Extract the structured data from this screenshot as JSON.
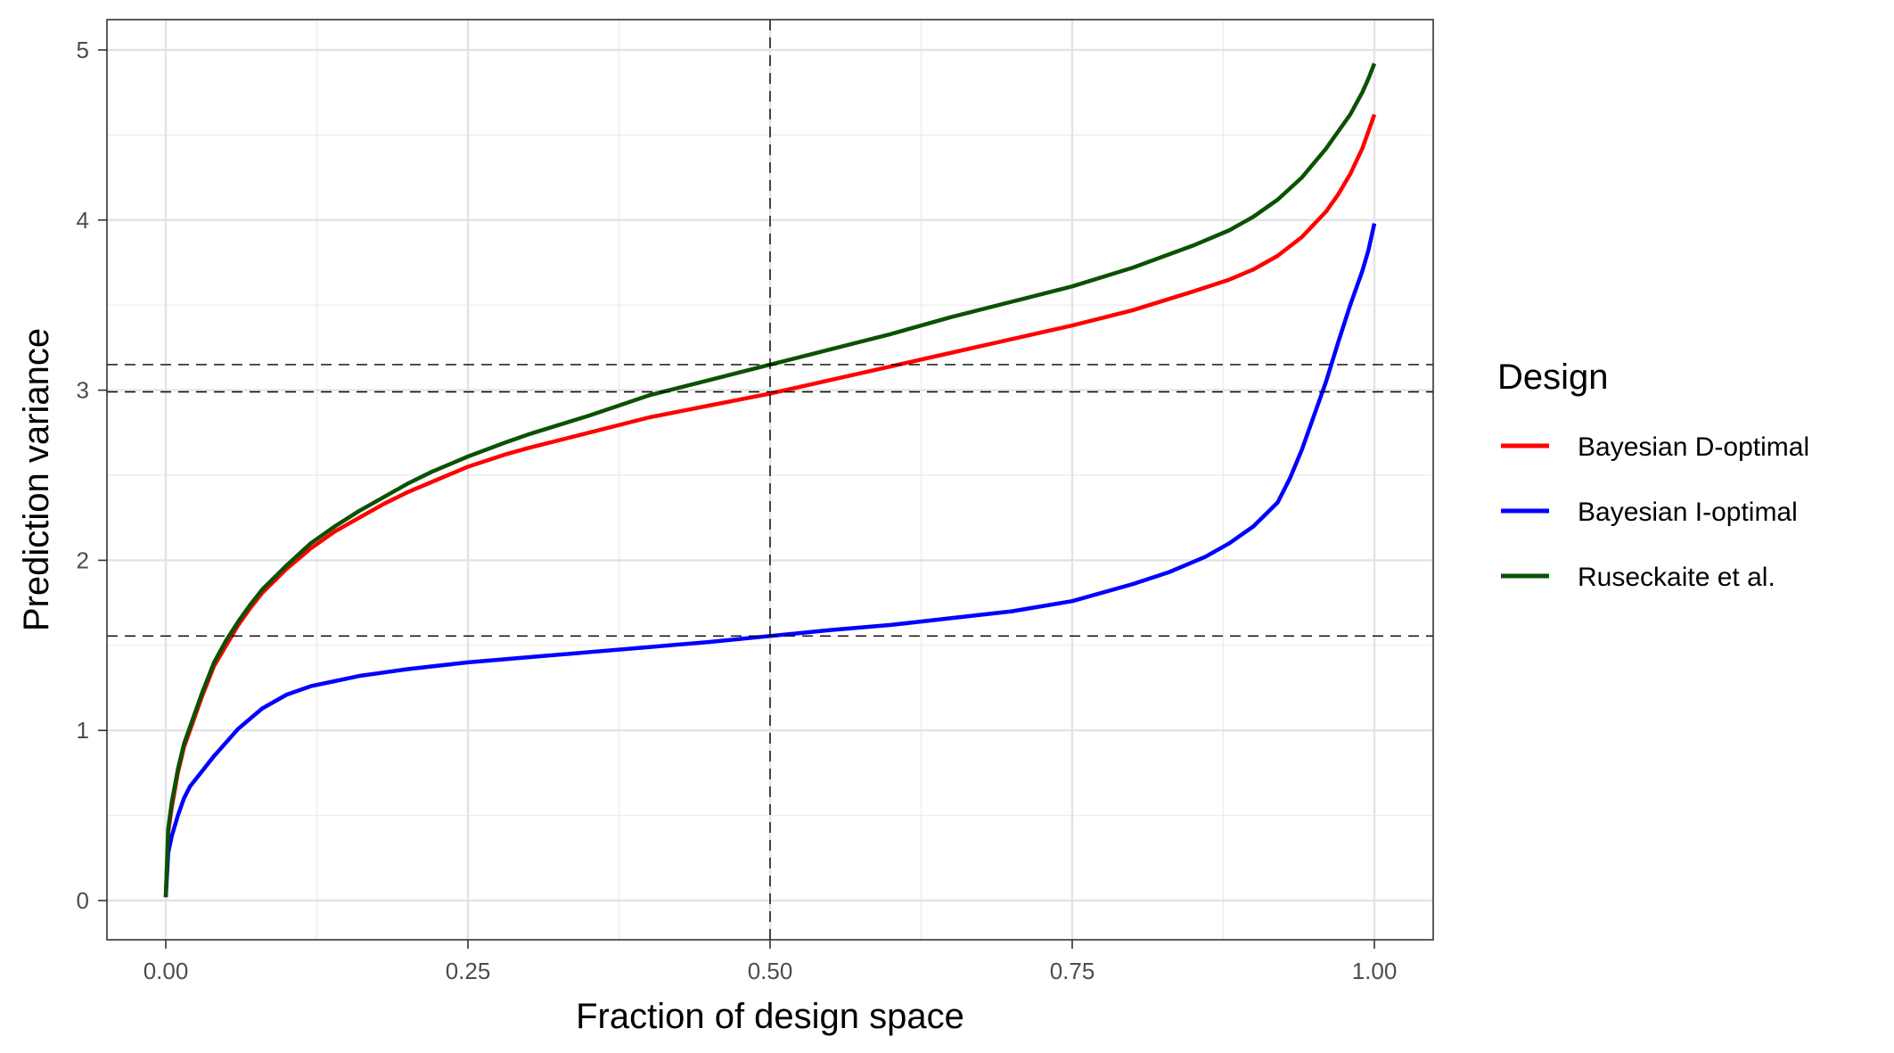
{
  "chart_data": {
    "type": "line",
    "xlabel": "Fraction of design space",
    "ylabel": "Prediction variance",
    "xlim": [
      0,
      1
    ],
    "ylim": [
      0,
      5
    ],
    "xticks": [
      0,
      0.25,
      0.5,
      0.75,
      1
    ],
    "xtick_labels": [
      "0.00",
      "0.25",
      "0.50",
      "0.75",
      "1.00"
    ],
    "yticks": [
      0,
      1,
      2,
      3,
      4,
      5
    ],
    "ytick_labels": [
      "0",
      "1",
      "2",
      "3",
      "4",
      "5"
    ],
    "grid": true,
    "legend": {
      "title": "Design",
      "placement": "right"
    },
    "reference_lines": {
      "vertical": [
        0.5
      ],
      "horizontal": [
        3.15,
        2.99,
        1.555
      ]
    },
    "series": [
      {
        "name": "Bayesian D-optimal",
        "color": "#ff0000",
        "x": [
          0,
          0.002,
          0.005,
          0.01,
          0.015,
          0.02,
          0.03,
          0.04,
          0.05,
          0.06,
          0.07,
          0.08,
          0.09,
          0.1,
          0.12,
          0.14,
          0.16,
          0.18,
          0.2,
          0.22,
          0.25,
          0.28,
          0.3,
          0.35,
          0.4,
          0.45,
          0.5,
          0.55,
          0.6,
          0.65,
          0.7,
          0.75,
          0.8,
          0.85,
          0.88,
          0.9,
          0.92,
          0.94,
          0.96,
          0.97,
          0.98,
          0.99,
          0.995,
          1.0
        ],
        "values": [
          0.02,
          0.4,
          0.55,
          0.75,
          0.9,
          1.0,
          1.2,
          1.38,
          1.5,
          1.62,
          1.72,
          1.81,
          1.88,
          1.95,
          2.07,
          2.17,
          2.25,
          2.33,
          2.4,
          2.46,
          2.55,
          2.62,
          2.66,
          2.75,
          2.84,
          2.91,
          2.98,
          3.06,
          3.14,
          3.22,
          3.3,
          3.38,
          3.47,
          3.58,
          3.65,
          3.71,
          3.79,
          3.9,
          4.05,
          4.15,
          4.27,
          4.42,
          4.52,
          4.62
        ]
      },
      {
        "name": "Bayesian I-optimal",
        "color": "#0000ff",
        "x": [
          0,
          0.002,
          0.005,
          0.01,
          0.015,
          0.02,
          0.03,
          0.04,
          0.05,
          0.06,
          0.07,
          0.08,
          0.09,
          0.1,
          0.12,
          0.14,
          0.16,
          0.18,
          0.2,
          0.25,
          0.3,
          0.35,
          0.4,
          0.45,
          0.5,
          0.55,
          0.6,
          0.65,
          0.7,
          0.75,
          0.8,
          0.83,
          0.86,
          0.88,
          0.9,
          0.92,
          0.93,
          0.94,
          0.95,
          0.96,
          0.97,
          0.98,
          0.99,
          0.995,
          1.0
        ],
        "values": [
          0.02,
          0.28,
          0.38,
          0.5,
          0.6,
          0.67,
          0.76,
          0.85,
          0.93,
          1.01,
          1.07,
          1.13,
          1.17,
          1.21,
          1.26,
          1.29,
          1.32,
          1.34,
          1.36,
          1.4,
          1.43,
          1.46,
          1.49,
          1.52,
          1.555,
          1.59,
          1.62,
          1.66,
          1.7,
          1.76,
          1.86,
          1.93,
          2.02,
          2.1,
          2.2,
          2.34,
          2.48,
          2.65,
          2.85,
          3.05,
          3.28,
          3.5,
          3.7,
          3.82,
          3.98
        ]
      },
      {
        "name": "Ruseckaite et al.",
        "color": "#0a5200",
        "x": [
          0,
          0.002,
          0.005,
          0.01,
          0.015,
          0.02,
          0.03,
          0.04,
          0.05,
          0.06,
          0.07,
          0.08,
          0.09,
          0.1,
          0.12,
          0.14,
          0.16,
          0.18,
          0.2,
          0.22,
          0.25,
          0.28,
          0.3,
          0.35,
          0.4,
          0.45,
          0.5,
          0.55,
          0.6,
          0.65,
          0.7,
          0.75,
          0.8,
          0.85,
          0.88,
          0.9,
          0.92,
          0.94,
          0.96,
          0.97,
          0.98,
          0.99,
          0.995,
          1.0
        ],
        "values": [
          0.02,
          0.42,
          0.58,
          0.77,
          0.92,
          1.02,
          1.22,
          1.4,
          1.53,
          1.64,
          1.74,
          1.83,
          1.9,
          1.97,
          2.1,
          2.2,
          2.29,
          2.37,
          2.45,
          2.52,
          2.61,
          2.69,
          2.74,
          2.85,
          2.97,
          3.06,
          3.15,
          3.24,
          3.33,
          3.43,
          3.52,
          3.61,
          3.72,
          3.85,
          3.94,
          4.02,
          4.12,
          4.25,
          4.42,
          4.52,
          4.62,
          4.75,
          4.83,
          4.92
        ]
      }
    ]
  }
}
